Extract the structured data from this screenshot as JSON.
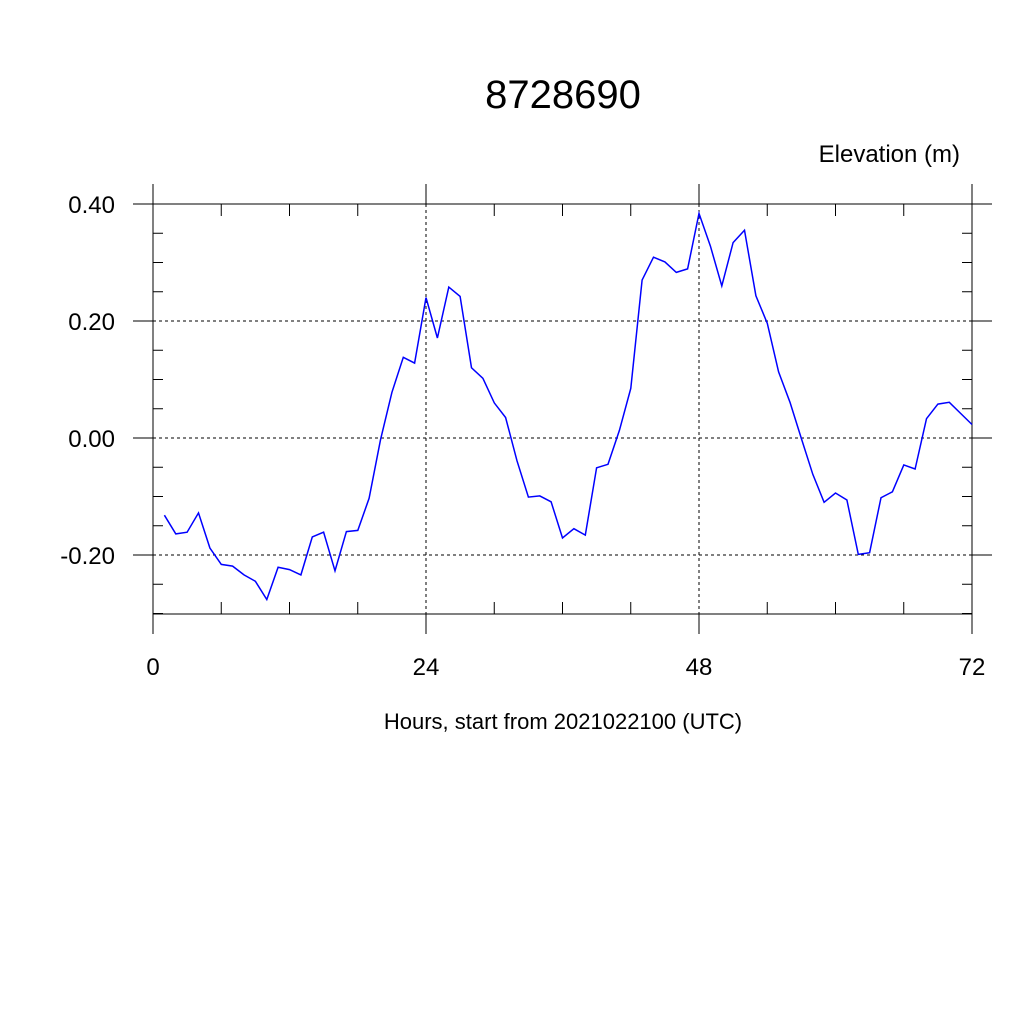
{
  "chart_data": {
    "type": "line",
    "title": "8728690",
    "ylabel": "Elevation (m)",
    "xlabel": "Hours, start from 2021022100 (UTC)",
    "xlim": [
      0,
      72
    ],
    "ylim": [
      -0.3,
      0.4
    ],
    "x_ticks": [
      0,
      24,
      48,
      72
    ],
    "x_tick_labels": [
      "0",
      "24",
      "48",
      "72"
    ],
    "y_ticks": [
      0.4,
      0.2,
      0.0,
      -0.2
    ],
    "y_tick_labels": [
      "0.40",
      "0.20",
      "0.00",
      "-0.20"
    ],
    "grid": true,
    "colors": {
      "line": "#0000ff",
      "axis": "#000000",
      "grid": "#000000"
    },
    "series": [
      {
        "x": [
          1,
          2,
          3,
          4,
          5,
          6,
          7,
          8,
          9,
          10,
          11,
          12,
          13,
          14,
          15,
          16,
          17,
          18,
          19,
          20,
          21,
          22,
          23,
          24,
          25,
          26,
          27,
          28,
          29,
          30,
          31,
          32,
          33,
          34,
          35,
          36,
          37,
          38,
          39,
          40,
          41,
          42,
          43,
          44,
          45,
          46,
          47,
          48,
          49,
          50,
          51,
          52,
          53,
          54,
          55,
          56,
          57,
          58,
          59,
          60,
          61,
          62,
          63,
          64,
          65,
          66,
          67,
          68,
          69,
          70,
          71,
          72
        ],
        "values": [
          -0.132,
          -0.164,
          -0.161,
          -0.128,
          -0.188,
          -0.216,
          -0.219,
          -0.234,
          -0.245,
          -0.276,
          -0.221,
          -0.225,
          -0.234,
          -0.169,
          -0.161,
          -0.227,
          -0.16,
          -0.158,
          -0.103,
          -0.003,
          0.078,
          0.138,
          0.128,
          0.24,
          0.171,
          0.258,
          0.242,
          0.12,
          0.102,
          0.06,
          0.035,
          -0.039,
          -0.101,
          -0.099,
          -0.109,
          -0.171,
          -0.155,
          -0.166,
          -0.051,
          -0.045,
          0.013,
          0.085,
          0.27,
          0.309,
          0.301,
          0.283,
          0.289,
          0.384,
          0.328,
          0.26,
          0.334,
          0.355,
          0.243,
          0.196,
          0.113,
          0.061,
          -0.001,
          -0.062,
          -0.11,
          -0.094,
          -0.106,
          -0.199,
          -0.196,
          -0.102,
          -0.092,
          -0.046,
          -0.053,
          0.033,
          0.058,
          0.061,
          0.042,
          0.023
        ]
      }
    ]
  }
}
